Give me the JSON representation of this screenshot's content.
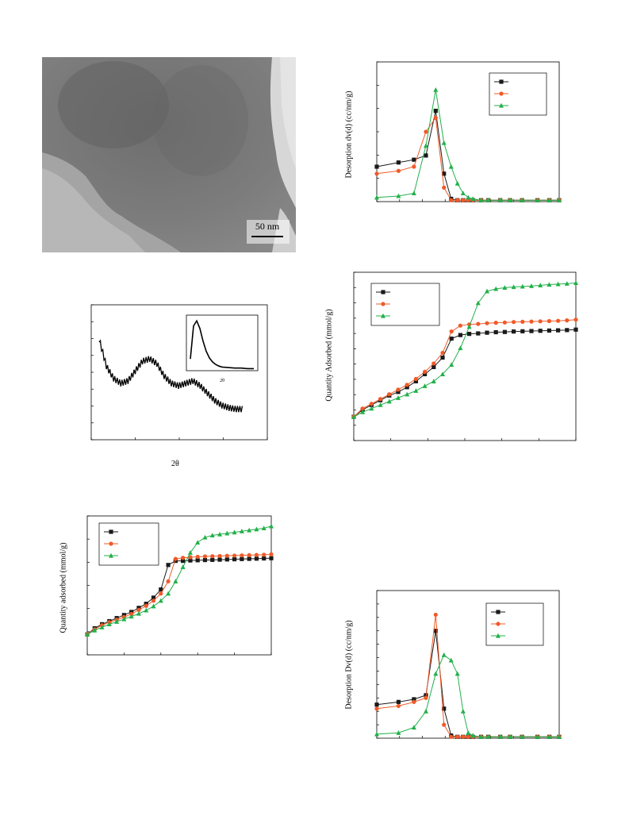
{
  "colors": {
    "black": "#1a1a1a",
    "red": "#f05a28",
    "green": "#22b04a"
  },
  "tem": {
    "scale_bar_label": "50 nm"
  },
  "xrd": {
    "xlabel": "2θ",
    "inset_xlabel": "2θ",
    "chart_data": {
      "type": "line",
      "x": [
        0,
        5,
        10,
        15,
        20,
        25,
        30,
        35,
        40,
        45,
        50,
        55,
        60,
        65,
        70,
        75,
        80,
        85,
        90,
        95,
        100
      ],
      "series": [
        {
          "values": [
            82,
            60,
            50,
            46,
            48,
            56,
            64,
            66,
            62,
            52,
            46,
            44,
            46,
            48,
            44,
            38,
            32,
            28,
            26,
            25,
            25
          ]
        }
      ]
    },
    "inset_chart_data": {
      "type": "line",
      "x": [
        0,
        1,
        2,
        3,
        4,
        5,
        6,
        7,
        8,
        9,
        10,
        12,
        14,
        16,
        18,
        20
      ],
      "series": [
        {
          "values": [
            20,
            85,
            95,
            80,
            55,
            35,
            22,
            14,
            9,
            6,
            4,
            3,
            2,
            2,
            1,
            1
          ]
        }
      ]
    }
  },
  "iso_left": {
    "ylabel": "Quantity adsorbed (mmol/g)",
    "chart_data": {
      "type": "line",
      "x": [
        0,
        0.04,
        0.08,
        0.12,
        0.16,
        0.2,
        0.24,
        0.28,
        0.32,
        0.36,
        0.4,
        0.44,
        0.48,
        0.52,
        0.56,
        0.6,
        0.64,
        0.68,
        0.72,
        0.76,
        0.8,
        0.84,
        0.88,
        0.92,
        0.96,
        1.0
      ],
      "series": [
        {
          "color_key": "black",
          "marker": "square",
          "values": [
            1.0,
            1.3,
            1.5,
            1.65,
            1.8,
            1.95,
            2.1,
            2.3,
            2.5,
            2.8,
            3.2,
            4.4,
            4.6,
            4.6,
            4.62,
            4.63,
            4.64,
            4.65,
            4.66,
            4.67,
            4.68,
            4.69,
            4.7,
            4.71,
            4.72,
            4.73
          ]
        },
        {
          "color_key": "red",
          "marker": "circle",
          "values": [
            1.0,
            1.25,
            1.45,
            1.6,
            1.72,
            1.85,
            2.0,
            2.2,
            2.4,
            2.65,
            3.0,
            3.6,
            4.7,
            4.75,
            4.78,
            4.8,
            4.82,
            4.83,
            4.84,
            4.85,
            4.86,
            4.87,
            4.88,
            4.89,
            4.9,
            4.92
          ]
        },
        {
          "color_key": "green",
          "marker": "triangle",
          "values": [
            1.0,
            1.2,
            1.35,
            1.5,
            1.62,
            1.75,
            1.88,
            2.02,
            2.18,
            2.38,
            2.65,
            3.0,
            3.6,
            4.3,
            5.0,
            5.5,
            5.75,
            5.85,
            5.9,
            5.95,
            6.0,
            6.05,
            6.1,
            6.15,
            6.2,
            6.3
          ]
        }
      ]
    }
  },
  "iso_right": {
    "ylabel": "Quantity Adsorbed (mmol/g)",
    "chart_data": {
      "type": "line",
      "x": [
        0,
        0.04,
        0.08,
        0.12,
        0.16,
        0.2,
        0.24,
        0.28,
        0.32,
        0.36,
        0.4,
        0.44,
        0.48,
        0.52,
        0.56,
        0.6,
        0.64,
        0.68,
        0.72,
        0.76,
        0.8,
        0.84,
        0.88,
        0.92,
        0.96,
        1.0
      ],
      "series": [
        {
          "color_key": "black",
          "marker": "square",
          "values": [
            1.0,
            1.3,
            1.5,
            1.7,
            1.9,
            2.05,
            2.25,
            2.5,
            2.8,
            3.1,
            3.5,
            4.3,
            4.45,
            4.5,
            4.52,
            4.55,
            4.57,
            4.58,
            4.6,
            4.61,
            4.62,
            4.63,
            4.64,
            4.65,
            4.66,
            4.68
          ]
        },
        {
          "color_key": "red",
          "marker": "circle",
          "values": [
            1.0,
            1.35,
            1.55,
            1.75,
            1.95,
            2.15,
            2.35,
            2.6,
            2.9,
            3.25,
            3.7,
            4.6,
            4.85,
            4.9,
            4.92,
            4.95,
            4.97,
            4.98,
            5.0,
            5.01,
            5.02,
            5.03,
            5.04,
            5.05,
            5.07,
            5.1
          ]
        },
        {
          "color_key": "green",
          "marker": "triangle",
          "values": [
            1.0,
            1.2,
            1.35,
            1.5,
            1.65,
            1.8,
            1.95,
            2.1,
            2.3,
            2.5,
            2.8,
            3.2,
            3.9,
            4.8,
            5.8,
            6.3,
            6.4,
            6.45,
            6.48,
            6.5,
            6.52,
            6.55,
            6.58,
            6.6,
            6.62,
            6.65
          ]
        }
      ]
    }
  },
  "psd_top": {
    "ylabel": "Desorption dv(d) (cc/nm/g)",
    "chart_data": {
      "type": "line",
      "x": [
        1,
        1.5,
        2,
        2.5,
        3,
        3.5,
        4,
        4.5,
        5,
        5.5,
        6,
        7,
        8,
        10,
        12,
        15,
        20,
        25,
        30
      ],
      "series": [
        {
          "color_key": "black",
          "marker": "square",
          "values": [
            0.25,
            0.28,
            0.3,
            0.33,
            0.65,
            0.2,
            0.02,
            0.01,
            0.01,
            0.01,
            0.01,
            0.01,
            0.01,
            0.01,
            0.01,
            0.01,
            0.01,
            0.01,
            0.01
          ]
        },
        {
          "color_key": "red",
          "marker": "circle",
          "values": [
            0.2,
            0.22,
            0.25,
            0.5,
            0.6,
            0.1,
            0.01,
            0.01,
            0.01,
            0.01,
            0.01,
            0.01,
            0.01,
            0.01,
            0.01,
            0.01,
            0.01,
            0.01,
            0.01
          ]
        },
        {
          "color_key": "green",
          "marker": "triangle",
          "values": [
            0.03,
            0.04,
            0.06,
            0.4,
            0.8,
            0.42,
            0.25,
            0.13,
            0.06,
            0.03,
            0.02,
            0.01,
            0.01,
            0.01,
            0.01,
            0.01,
            0.01,
            0.01,
            0.01
          ]
        }
      ]
    }
  },
  "psd_bottom": {
    "ylabel": "Desorption Dv(d) (cc/nm/g)",
    "chart_data": {
      "type": "line",
      "x": [
        1,
        1.5,
        2,
        2.5,
        3,
        3.5,
        4,
        4.5,
        5,
        5.5,
        6,
        7,
        8,
        10,
        12,
        15,
        20,
        25,
        30
      ],
      "series": [
        {
          "color_key": "black",
          "marker": "square",
          "values": [
            0.25,
            0.27,
            0.29,
            0.32,
            0.8,
            0.22,
            0.02,
            0.01,
            0.01,
            0.01,
            0.01,
            0.01,
            0.01,
            0.01,
            0.01,
            0.01,
            0.01,
            0.01,
            0.01
          ]
        },
        {
          "color_key": "red",
          "marker": "circle",
          "values": [
            0.22,
            0.24,
            0.27,
            0.3,
            0.92,
            0.1,
            0.01,
            0.01,
            0.01,
            0.01,
            0.01,
            0.01,
            0.01,
            0.01,
            0.01,
            0.01,
            0.01,
            0.01,
            0.01
          ]
        },
        {
          "color_key": "green",
          "marker": "triangle",
          "values": [
            0.03,
            0.04,
            0.08,
            0.2,
            0.48,
            0.62,
            0.58,
            0.48,
            0.2,
            0.04,
            0.02,
            0.01,
            0.01,
            0.01,
            0.01,
            0.01,
            0.01,
            0.01,
            0.01
          ]
        }
      ]
    }
  }
}
